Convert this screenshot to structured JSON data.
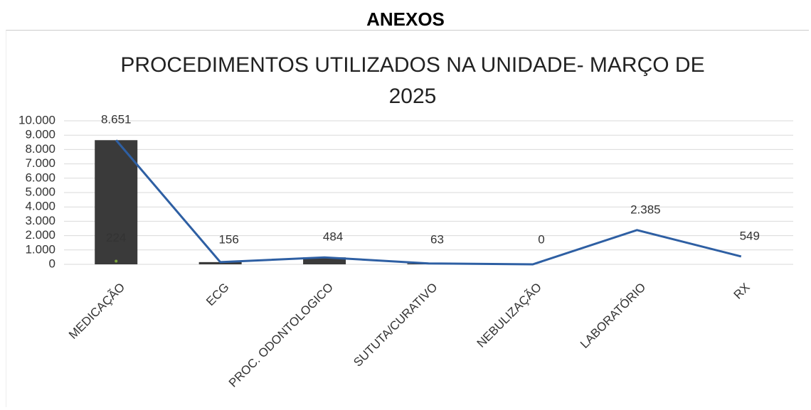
{
  "header": "ANEXOS",
  "chart_data": {
    "type": "combo",
    "title": "PROCEDIMENTOS UTILIZADOS NA UNIDADE- MARÇO DE 2025",
    "categories": [
      "MEDICAÇÃO",
      "ECG",
      "PROC. ODONTOLOGICO",
      "SUTUTA/CURATIVO",
      "NEBULIZAÇÃO",
      "LABORATÓRIO",
      "RX"
    ],
    "series": [
      {
        "kind": "bar",
        "color": "#3a3a3a",
        "values": [
          8651,
          156,
          484,
          63,
          null,
          null,
          null
        ]
      },
      {
        "kind": "line",
        "color": "#2e5fa3",
        "values": [
          8651,
          156,
          484,
          63,
          0,
          2385,
          549
        ],
        "value_labels": [
          "8.651",
          "156",
          "484",
          "63",
          "0",
          "2.385",
          "549"
        ]
      },
      {
        "kind": "line",
        "color": "#7aa23a",
        "values": [
          224,
          null,
          null,
          null,
          null,
          null,
          null
        ]
      }
    ],
    "ylim": [
      0,
      10000
    ],
    "yticks": [
      0,
      {
        "value": 1000,
        "label": "1.000"
      },
      {
        "value": 2000,
        "label": "2.000"
      },
      {
        "value": 3000,
        "label": "3.000"
      },
      {
        "value": 4000,
        "label": "4.000"
      },
      {
        "value": 5000,
        "label": "5.000"
      },
      {
        "value": 6000,
        "label": "6.000"
      },
      {
        "value": 7000,
        "label": "7.000"
      },
      {
        "value": 8000,
        "label": "8.000"
      },
      {
        "value": 9000,
        "label": "9.000"
      },
      {
        "value": 10000,
        "label": "10.000"
      }
    ],
    "grid": true
  }
}
